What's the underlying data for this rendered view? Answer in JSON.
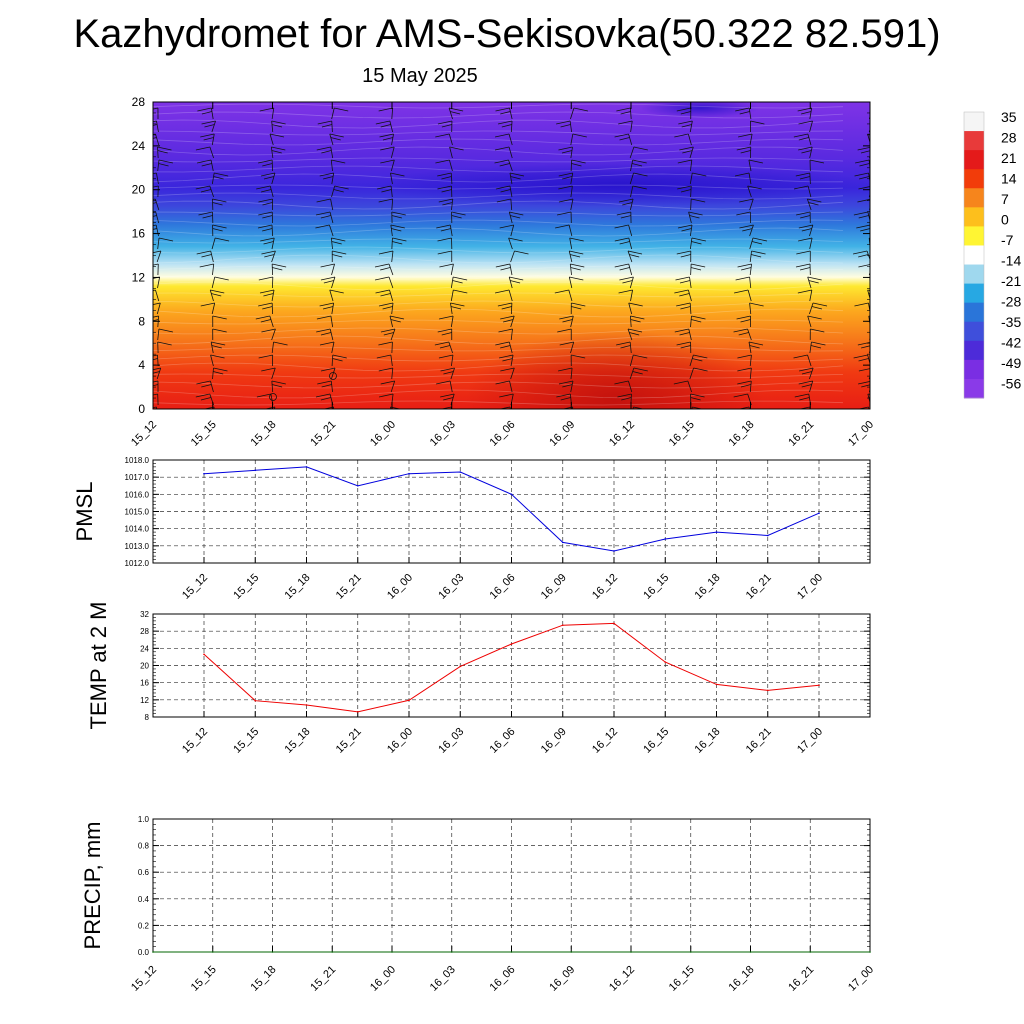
{
  "header": {
    "title": "Kazhydromet for AMS-Sekisovka(50.322 82.591)",
    "subtitle": "15 May 2025"
  },
  "colorbar": {
    "labels": [
      "35",
      "28",
      "21",
      "14",
      "7",
      "0",
      "-7",
      "-14",
      "-21",
      "-28",
      "-35",
      "-42",
      "-49",
      "-56"
    ],
    "colors": [
      "#f5f5f5",
      "#e83a3a",
      "#e41a1a",
      "#f23c0a",
      "#f6851c",
      "#fdbf1c",
      "#fff533",
      "#ffffff",
      "#9fd8ee",
      "#27a8e3",
      "#2a75d9",
      "#3f4fdb",
      "#4d2bd9",
      "#7a2ee3",
      "#8a3ae8"
    ]
  },
  "chart_data": [
    {
      "type": "heatmap",
      "panel": "cross-section",
      "title": "",
      "xlabel": "",
      "ylabel": "",
      "categories": [
        "15_12",
        "15_15",
        "15_18",
        "15_21",
        "16_00",
        "16_03",
        "16_06",
        "16_09",
        "16_12",
        "16_15",
        "16_18",
        "16_21",
        "17_00"
      ],
      "yticks": [
        0,
        4,
        8,
        12,
        16,
        20,
        24,
        28
      ],
      "ylim": [
        0,
        28
      ],
      "value_range": [
        -56,
        35
      ],
      "note_levels": {
        "warm_layer_top": 12,
        "tropopause_band": [
          17,
          21
        ]
      },
      "wind_barbs": true
    },
    {
      "type": "line",
      "panel": "pmsl",
      "ylabel": "PMSL",
      "color": "#0000dd",
      "categories": [
        "15_12",
        "15_15",
        "15_18",
        "15_21",
        "16_00",
        "16_03",
        "16_06",
        "16_09",
        "16_12",
        "16_15",
        "16_18",
        "16_21",
        "17_00"
      ],
      "values": [
        1017.2,
        1017.4,
        1017.6,
        1016.5,
        1017.2,
        1017.3,
        1016.0,
        1013.2,
        1012.7,
        1013.4,
        1013.8,
        1013.6,
        1014.9
      ],
      "yticks": [
        "1018.0",
        "1017.0",
        "1016.0",
        "1015.0",
        "1014.0",
        "1013.0",
        "1012.0"
      ],
      "ylim": [
        1012,
        1018
      ]
    },
    {
      "type": "line",
      "panel": "temp2m",
      "ylabel": "TEMP at 2 M",
      "color": "#ee0000",
      "categories": [
        "15_12",
        "15_15",
        "15_18",
        "15_21",
        "16_00",
        "16_03",
        "16_06",
        "16_09",
        "16_12",
        "16_15",
        "16_18",
        "16_21",
        "17_00"
      ],
      "values": [
        22.6,
        11.8,
        10.8,
        9.2,
        11.9,
        19.8,
        25.0,
        29.4,
        29.8,
        20.8,
        15.6,
        14.2,
        15.4
      ],
      "yticks": [
        "32",
        "28",
        "24",
        "20",
        "16",
        "12",
        "8"
      ],
      "ylim": [
        8,
        32
      ]
    },
    {
      "type": "line",
      "panel": "precip",
      "ylabel": "PRECIP, mm",
      "color": "#006400",
      "categories": [
        "15_12",
        "15_15",
        "15_18",
        "15_21",
        "16_00",
        "16_03",
        "16_06",
        "16_09",
        "16_12",
        "16_15",
        "16_18",
        "16_21",
        "17_00"
      ],
      "values": [
        0,
        0,
        0,
        0,
        0,
        0,
        0,
        0,
        0,
        0,
        0,
        0,
        0
      ],
      "yticks": [
        "1.0",
        "0.8",
        "0.6",
        "0.4",
        "0.2",
        "0.0"
      ],
      "ylim": [
        0,
        1
      ]
    }
  ]
}
